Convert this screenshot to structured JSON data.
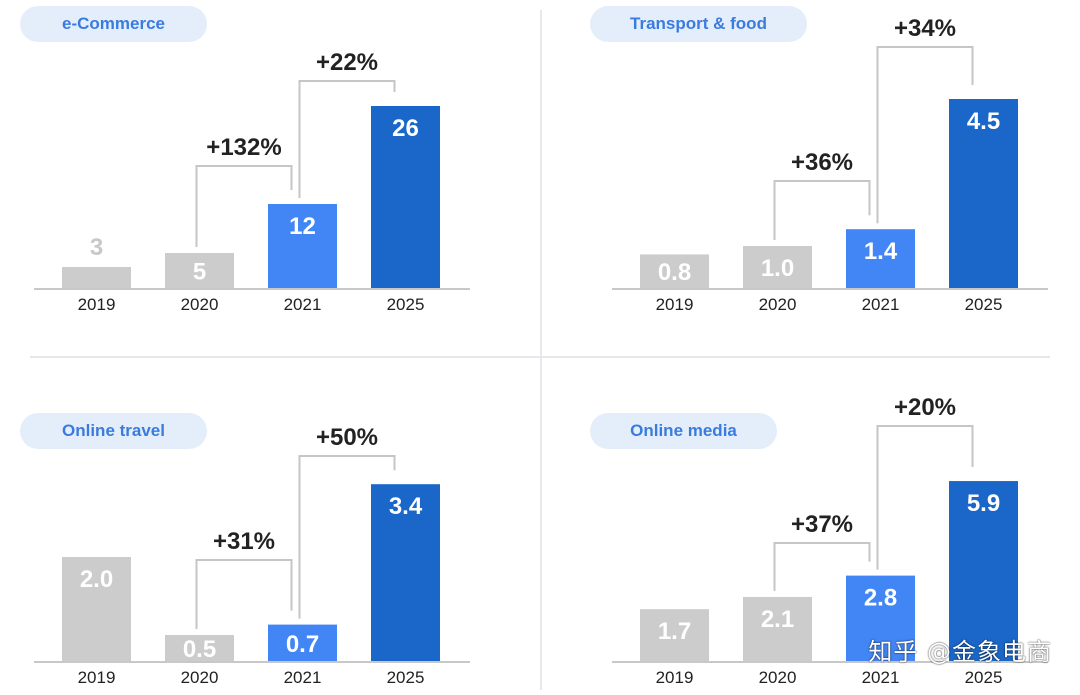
{
  "chart_data": [
    {
      "type": "bar",
      "title": "e-Commerce",
      "categories": [
        "2019",
        "2020",
        "2021",
        "2025"
      ],
      "values": [
        3,
        5,
        12,
        26
      ],
      "value_labels": [
        "3",
        "5",
        "12",
        "26"
      ],
      "bar_colors": [
        "#cccccc",
        "#cccccc",
        "#4285f4",
        "#1a67c9"
      ],
      "growth": [
        {
          "from": "2020",
          "to": "2021",
          "label": "+132%"
        },
        {
          "from": "2021",
          "to": "2025",
          "label": "+22%"
        }
      ],
      "xlabel": "",
      "ylabel": ""
    },
    {
      "type": "bar",
      "title": "Transport & food",
      "categories": [
        "2019",
        "2020",
        "2021",
        "2025"
      ],
      "values": [
        0.8,
        1.0,
        1.4,
        4.5
      ],
      "value_labels": [
        "0.8",
        "1.0",
        "1.4",
        "4.5"
      ],
      "bar_colors": [
        "#cccccc",
        "#cccccc",
        "#4285f4",
        "#1a67c9"
      ],
      "growth": [
        {
          "from": "2020",
          "to": "2021",
          "label": "+36%"
        },
        {
          "from": "2021",
          "to": "2025",
          "label": "+34%"
        }
      ],
      "xlabel": "",
      "ylabel": ""
    },
    {
      "type": "bar",
      "title": "Online travel",
      "categories": [
        "2019",
        "2020",
        "2021",
        "2025"
      ],
      "values": [
        2.0,
        0.5,
        0.7,
        3.4
      ],
      "value_labels": [
        "2.0",
        "0.5",
        "0.7",
        "3.4"
      ],
      "bar_colors": [
        "#cccccc",
        "#cccccc",
        "#4285f4",
        "#1a67c9"
      ],
      "growth": [
        {
          "from": "2020",
          "to": "2021",
          "label": "+31%"
        },
        {
          "from": "2021",
          "to": "2025",
          "label": "+50%"
        }
      ],
      "xlabel": "",
      "ylabel": ""
    },
    {
      "type": "bar",
      "title": "Online media",
      "categories": [
        "2019",
        "2020",
        "2021",
        "2025"
      ],
      "values": [
        1.7,
        2.1,
        2.8,
        5.9
      ],
      "value_labels": [
        "1.7",
        "2.1",
        "2.8",
        "5.9"
      ],
      "bar_colors": [
        "#cccccc",
        "#cccccc",
        "#4285f4",
        "#1a67c9"
      ],
      "growth": [
        {
          "from": "2020",
          "to": "2021",
          "label": "+37%"
        },
        {
          "from": "2021",
          "to": "2025",
          "label": "+20%"
        }
      ],
      "xlabel": "",
      "ylabel": ""
    }
  ],
  "watermark": "知乎 @金象电商",
  "colors": {
    "accent": "#3a7be0",
    "pill_bg": "#e4eefb",
    "bar_grey": "#cccccc",
    "bar_blue": "#4285f4",
    "bar_dark_blue": "#1a67c9",
    "bracket": "#c6c6c6",
    "text": "#222222"
  }
}
